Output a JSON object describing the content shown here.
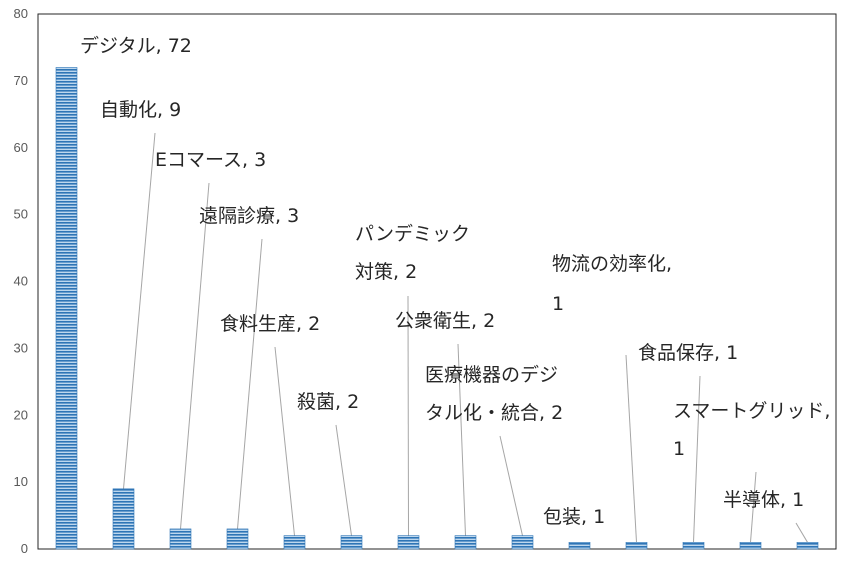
{
  "chart_data": {
    "type": "bar",
    "title": "",
    "xlabel": "",
    "ylabel": "",
    "ylim": [
      0,
      80
    ],
    "yticks": [
      0,
      10,
      20,
      30,
      40,
      50,
      60,
      70,
      80
    ],
    "grid": false,
    "legend": "none",
    "bar_color": "#2e75b6",
    "bar_highlight": "#bdd7ee",
    "categories": [
      "デジタル",
      "自動化",
      "Eコマース",
      "遠隔診療",
      "食料生産",
      "殺菌",
      "パンデミック対策",
      "公衆衛生",
      "医療機器のデジタル化・統合",
      "包装",
      "物流の効率化",
      "食品保存",
      "スマートグリッド",
      "半導体"
    ],
    "values": [
      72,
      9,
      3,
      3,
      2,
      2,
      2,
      2,
      2,
      1,
      1,
      1,
      1,
      1
    ],
    "data_labels": [
      [
        "デジタル, 72"
      ],
      [
        "自動化, 9"
      ],
      [
        "Eコマース, 3"
      ],
      [
        "遠隔診療, 3"
      ],
      [
        "食料生産, 2"
      ],
      [
        "殺菌, 2"
      ],
      [
        "パンデミック",
        "対策, 2"
      ],
      [
        "公衆衛生, 2"
      ],
      [
        "医療機器のデジ",
        "タル化・統合, 2"
      ],
      [
        "包装, 1"
      ],
      [
        "物流の効率化,",
        "1"
      ],
      [
        "食品保存, 1"
      ],
      [
        "スマートグリッド,",
        "1"
      ],
      [
        "半導体, 1"
      ]
    ]
  }
}
